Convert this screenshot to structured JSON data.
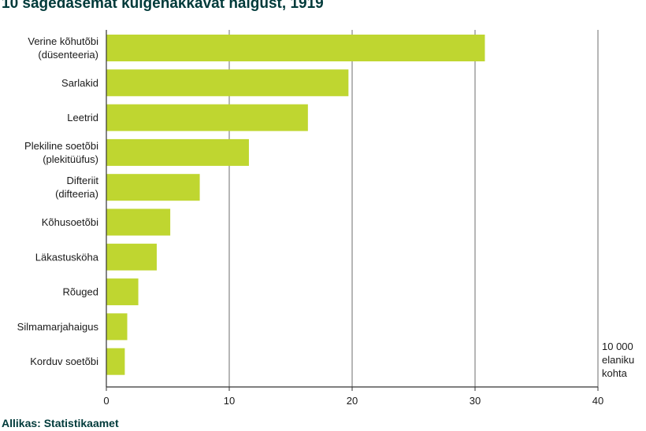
{
  "chart_data": {
    "type": "bar",
    "orientation": "horizontal",
    "title": "10 sagedasemat kuigehakkavat haigust, 1919",
    "source": "Allikas: Statistikaamet",
    "unit_lines": [
      "10 000",
      "elaniku",
      "kohta"
    ],
    "categories": [
      [
        "Verine kõhutõbi",
        "(düsenteeria)"
      ],
      [
        "Sarlakid"
      ],
      [
        "Leetrid"
      ],
      [
        "Plekiline soetõbi",
        "(plekitüüfus)"
      ],
      [
        "Difteriit",
        "(difteeria)"
      ],
      [
        "Kõhusoetõbi"
      ],
      [
        "Läkastusköha"
      ],
      [
        "Rõuged"
      ],
      [
        "Silmamarjahaigus"
      ],
      [
        "Korduv soetõbi"
      ]
    ],
    "values": [
      30.8,
      19.7,
      16.4,
      11.6,
      7.6,
      5.2,
      4.1,
      2.6,
      1.7,
      1.5
    ],
    "xlim": [
      0,
      40
    ],
    "xticks": [
      0,
      10,
      20,
      30,
      40
    ],
    "bar_color": "#bfd630",
    "grid_color": "#6e6e6e",
    "grid": true
  }
}
